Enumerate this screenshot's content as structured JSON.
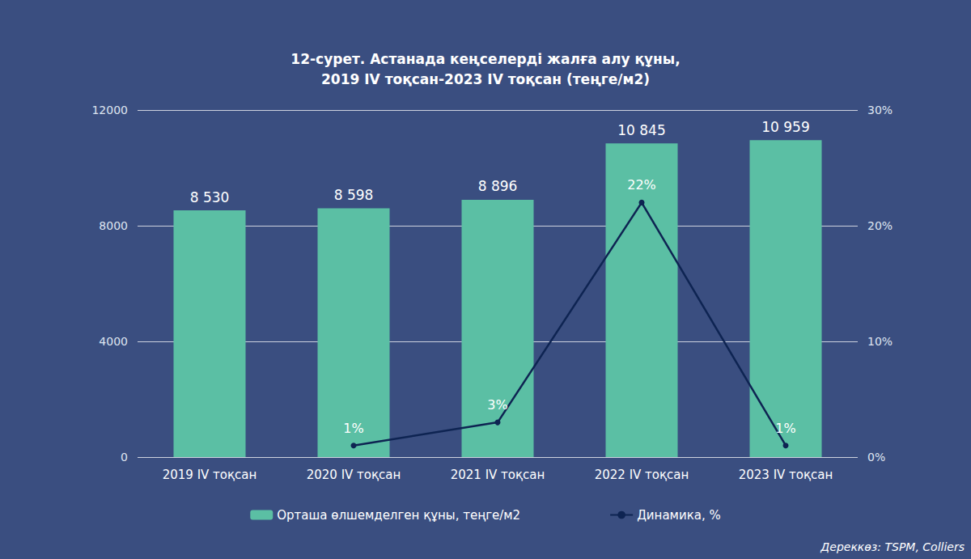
{
  "chart_data": {
    "type": "bar",
    "title": "12-сурет. Астанада кеңселерді жалға алу құны,\n2019 IV тоқсан-2023 IV тоқсан (теңге/м2)",
    "categories": [
      "2019 IV тоқсан",
      "2020 IV тоқсан",
      "2021 IV тоқсан",
      "2022 IV тоқсан",
      "2023 IV тоқсан"
    ],
    "series": [
      {
        "name": "Орташа өлшемделген құны, теңге/м2",
        "type": "bar",
        "color": "#5bbfa4",
        "values": [
          8530,
          8598,
          8896,
          10845,
          10959
        ],
        "value_labels": [
          "8 530",
          "8 598",
          "8 896",
          "10 845",
          "10 959"
        ]
      },
      {
        "name": "Динамика, %",
        "type": "line",
        "axis": "y2",
        "color": "#0e2452",
        "marker": "circle",
        "values": [
          null,
          1,
          3,
          22,
          1
        ],
        "value_labels": [
          null,
          "1%",
          "3%",
          "22%",
          "1%"
        ]
      }
    ],
    "ylim": [
      0,
      12000
    ],
    "yticks": [
      0,
      4000,
      8000,
      12000
    ],
    "y2lim": [
      0,
      30
    ],
    "y2ticks": [
      {
        "value": 0,
        "label": "0%"
      },
      {
        "value": 10,
        "label": "10%"
      },
      {
        "value": 20,
        "label": "20%"
      },
      {
        "value": 30,
        "label": "30%"
      }
    ],
    "grid": true,
    "data_labels": true,
    "legend": "bottom",
    "source": "Дереккөз: TSPM, Colliers"
  }
}
